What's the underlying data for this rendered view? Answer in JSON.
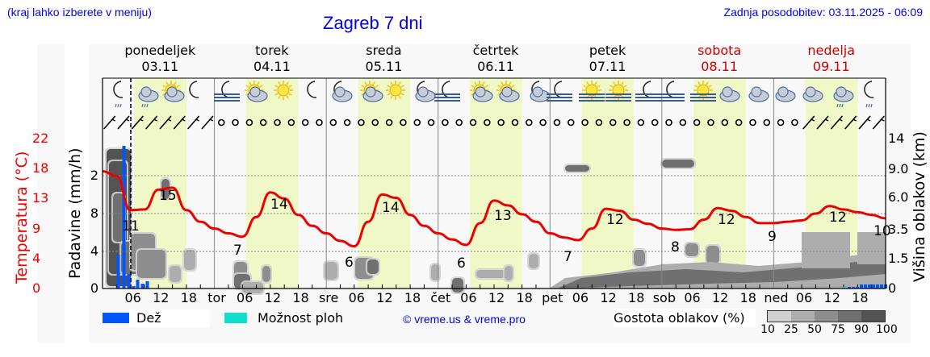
{
  "header": {
    "location_hint": "(kraj lahko izberete v meniju)",
    "title": "Zagreb 7 dni",
    "last_update": "Zadnja posodobitev: 03.11.2025 - 06:09"
  },
  "days": [
    {
      "name": "ponedeljek",
      "date": "03.11",
      "weekend": false
    },
    {
      "name": "torek",
      "date": "04.11",
      "weekend": false
    },
    {
      "name": "sreda",
      "date": "05.11",
      "weekend": false
    },
    {
      "name": "četrtek",
      "date": "06.11",
      "weekend": false
    },
    {
      "name": "petek",
      "date": "07.11",
      "weekend": false
    },
    {
      "name": "sobota",
      "date": "08.11",
      "weekend": true
    },
    {
      "name": "nedelja",
      "date": "09.11",
      "weekend": true
    }
  ],
  "axes": {
    "temperature_label": "Temperatura (°C)",
    "precip_label": "Padavine (mm/h)",
    "cloud_height_label": "Višina oblakov (km)",
    "temperature_ticks": [
      "22",
      "18",
      "13",
      "9",
      "4",
      "0"
    ],
    "precip_ticks": [
      "2",
      "8",
      "4",
      "0"
    ],
    "cloud_height_ticks": [
      "14",
      "9.0",
      "6.0",
      "3.5",
      "1.5",
      "0"
    ],
    "x_ticks": [
      "06",
      "12",
      "18",
      "tor",
      "06",
      "12",
      "18",
      "sre",
      "06",
      "12",
      "18",
      "čet",
      "06",
      "12",
      "18",
      "pet",
      "06",
      "12",
      "18",
      "sob",
      "06",
      "12",
      "18",
      "ned",
      "06",
      "12",
      "18"
    ]
  },
  "legend": {
    "rain": {
      "label": "Dež",
      "color": "#0055ff"
    },
    "showers": {
      "label": "Možnost ploh",
      "color": "#11ddcc"
    },
    "copyright": "© vreme.us & vreme.pro",
    "cloud_density_label": "Gostota oblakov (%)",
    "cloud_density_ticks": [
      "10",
      "25",
      "50",
      "75",
      "90",
      "100"
    ],
    "cloud_density_colors": [
      "#d0d0d0",
      "#adadad",
      "#8e8e8e",
      "#707070",
      "#545454"
    ]
  },
  "colors": {
    "temperature_line": "#ee0000",
    "daytime_band": "#f0f8c8",
    "panel_bg": "#f8f8f8",
    "title": "#0000ee",
    "weekend": "#cc0000"
  },
  "chart_data": {
    "type": "line",
    "title": "Zagreb 7 dni",
    "xlabel": "",
    "ylabel": "Temperatura (°C)",
    "ylim": [
      0,
      22
    ],
    "grid": true,
    "series": [
      {
        "name": "Temperatura (°C)",
        "x": [
          "03.11 00",
          "03.11 03",
          "03.11 06",
          "03.11 09",
          "03.11 12",
          "03.11 15",
          "03.11 18",
          "03.11 21",
          "04.11 00",
          "04.11 03",
          "04.11 06",
          "04.11 09",
          "04.11 12",
          "04.11 15",
          "04.11 18",
          "04.11 21",
          "05.11 00",
          "05.11 03",
          "05.11 06",
          "05.11 09",
          "05.11 12",
          "05.11 15",
          "05.11 18",
          "05.11 21",
          "06.11 00",
          "06.11 03",
          "06.11 06",
          "06.11 09",
          "06.11 12",
          "06.11 15",
          "06.11 18",
          "06.11 21",
          "07.11 00",
          "07.11 03",
          "07.11 06",
          "07.11 09",
          "07.11 12",
          "07.11 15",
          "07.11 18",
          "07.11 21",
          "08.11 00",
          "08.11 03",
          "08.11 06",
          "08.11 09",
          "08.11 12",
          "08.11 15",
          "08.11 18",
          "08.11 21",
          "09.11 00",
          "09.11 03",
          "09.11 06",
          "09.11 09",
          "09.11 12",
          "09.11 15",
          "09.11 18",
          "09.11 21",
          "10.11 00"
        ],
        "values": [
          17.2,
          16.5,
          11.5,
          11.6,
          14.5,
          14.8,
          11.5,
          9.8,
          8.8,
          8.1,
          7.6,
          10.5,
          14.1,
          13.2,
          10.8,
          9.2,
          8.1,
          7.0,
          6.2,
          9.8,
          13.8,
          13.3,
          10.8,
          9.2,
          8.1,
          7.2,
          6.4,
          9.6,
          12.9,
          12.2,
          10.9,
          9.8,
          8.1,
          7.5,
          7.1,
          8.8,
          11.7,
          11.4,
          10.1,
          9.5,
          8.8,
          8.6,
          8.7,
          10.1,
          11.8,
          11.4,
          10.5,
          9.6,
          9.6,
          9.8,
          10.0,
          11.0,
          12.1,
          11.6,
          11.2,
          10.8,
          10.3
        ]
      }
    ],
    "annotations": {
      "daily_max_labels": [
        15,
        14,
        14,
        13,
        12,
        12,
        12
      ],
      "daily_min_labels": [
        11,
        7,
        6,
        6,
        7,
        8,
        9,
        10
      ]
    },
    "precipitation_mm_h": {
      "label": "Dež",
      "note": "rain bars near 03.11 morning (peak ~2.9 scaled near top), light rain end of 09.11"
    },
    "cloud_density_percent": {
      "label": "Gostota oblakov (%)",
      "levels": [
        10,
        25,
        50,
        75,
        90,
        100
      ]
    },
    "secondary_axes": {
      "precipitation_ticks": [
        "0",
        "4",
        "8",
        "2"
      ],
      "cloud_height_km_ticks": [
        "0",
        "1.5",
        "3.5",
        "6.0",
        "9.0",
        "14"
      ]
    }
  }
}
